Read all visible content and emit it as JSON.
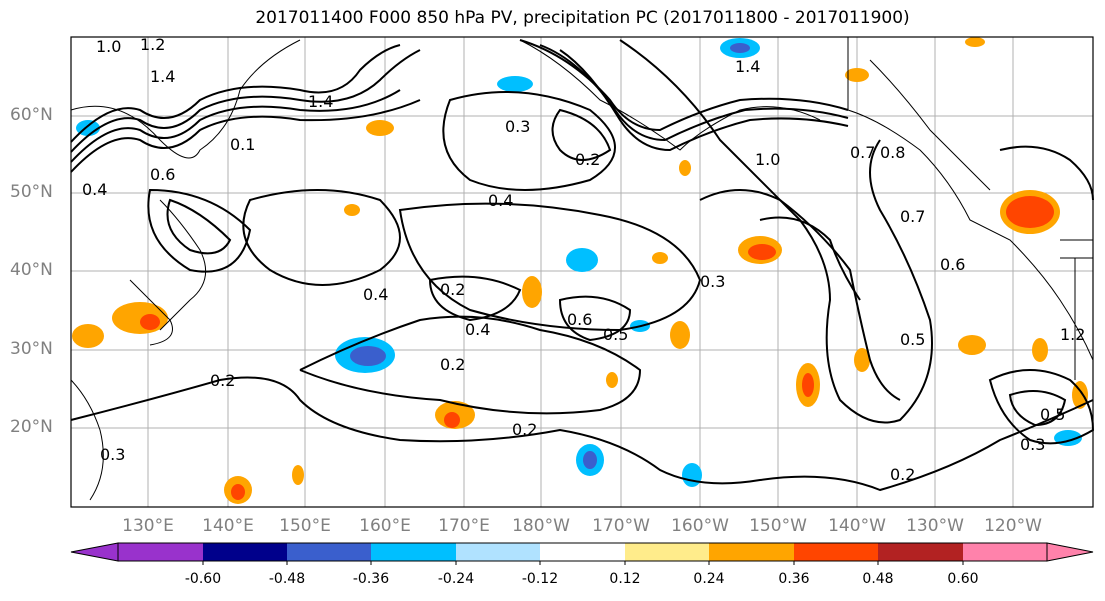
{
  "title": "2017011400 F000 850 hPa PV, precipitation PC (2017011800 - 2017011900)",
  "map": {
    "region": "North Pacific",
    "lat_labels": [
      "60°N",
      "50°N",
      "40°N",
      "30°N",
      "20°N"
    ],
    "lon_labels": [
      "130°E",
      "140°E",
      "150°E",
      "160°E",
      "170°E",
      "180°W",
      "170°W",
      "160°W",
      "150°W",
      "140°W",
      "130°W",
      "120°W"
    ],
    "contour_labels": [
      "1.0",
      "1.2",
      "1.4",
      "1.4",
      "1.4",
      "0.1",
      "0.3",
      "0.2",
      "0.4",
      "0.2",
      "0.4",
      "0.4",
      "0.6",
      "0.5",
      "0.2",
      "0.3",
      "0.5",
      "0.2",
      "0.7",
      "0.8",
      "1.0",
      "0.7",
      "0.6",
      "0.2",
      "0.5",
      "0.3",
      "0.2",
      "0.3",
      "0.4",
      "0.6",
      "1.2"
    ],
    "colors": {
      "coast": "#000000",
      "grid": "#b0b0b0",
      "contour": "#000000"
    }
  },
  "colorbar": {
    "ticks": [
      "-0.60",
      "-0.48",
      "-0.36",
      "-0.24",
      "-0.12",
      "0.12",
      "0.24",
      "0.36",
      "0.48",
      "0.60"
    ],
    "colors": [
      "#9932cc",
      "#00008b",
      "#3a5fcd",
      "#00bfff",
      "#b0e2ff",
      "#ffffff",
      "#ffec8b",
      "#ffa500",
      "#ff4500",
      "#b22222",
      "#ff82ab"
    ]
  }
}
